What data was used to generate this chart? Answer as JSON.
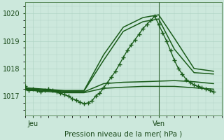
{
  "xlabel": "Pression niveau de la mer( hPa )",
  "ylim": [
    1016.3,
    1020.4
  ],
  "xlim": [
    0,
    50
  ],
  "yticks": [
    1017,
    1018,
    1019,
    1020
  ],
  "xtick_labels": [
    [
      "Jeu",
      2
    ],
    [
      "Ven",
      34
    ]
  ],
  "bg_color": "#cce8dc",
  "grid_color": "#b0d4c4",
  "line_color": "#1a5c1a",
  "vline_x": 34,
  "series_dotted": {
    "x": [
      0,
      1,
      2,
      3,
      4,
      5,
      6,
      7,
      8,
      9,
      10,
      11,
      12,
      13,
      14,
      15,
      16,
      17,
      18,
      19,
      20,
      21,
      22,
      23,
      24,
      25,
      26,
      27,
      28,
      29,
      30,
      31,
      32,
      33,
      34,
      35,
      36,
      37,
      38,
      39,
      40,
      41,
      42,
      43,
      44,
      45,
      46,
      47,
      48
    ],
    "y": [
      1017.35,
      1017.2,
      1017.25,
      1017.2,
      1017.15,
      1017.2,
      1017.25,
      1017.2,
      1017.15,
      1017.1,
      1017.05,
      1017.0,
      1016.9,
      1016.85,
      1016.78,
      1016.72,
      1016.75,
      1016.82,
      1017.0,
      1017.1,
      1017.3,
      1017.5,
      1017.7,
      1017.9,
      1018.15,
      1018.4,
      1018.65,
      1018.85,
      1019.05,
      1019.25,
      1019.45,
      1019.6,
      1019.75,
      1019.9,
      1019.6,
      1019.3,
      1019.0,
      1018.65,
      1018.3,
      1018.0,
      1017.8,
      1017.6,
      1017.5,
      1017.4,
      1017.35,
      1017.3,
      1017.25,
      1017.2,
      1017.15
    ],
    "marker": "+",
    "markersize": 4,
    "linewidth": 1.0,
    "color": "#1a5c1a"
  },
  "series_smooth": [
    {
      "x": [
        0,
        5,
        10,
        15,
        20,
        25,
        30,
        34,
        38,
        43,
        48
      ],
      "y": [
        1017.3,
        1017.25,
        1017.2,
        1017.2,
        1018.5,
        1019.5,
        1019.85,
        1019.95,
        1019.1,
        1018.0,
        1017.9
      ],
      "linewidth": 1.1,
      "color": "#1a5c1a"
    },
    {
      "x": [
        0,
        5,
        10,
        15,
        20,
        25,
        30,
        34,
        38,
        43,
        48
      ],
      "y": [
        1017.28,
        1017.22,
        1017.18,
        1017.18,
        1018.3,
        1019.35,
        1019.7,
        1019.8,
        1018.7,
        1017.85,
        1017.8
      ],
      "linewidth": 1.1,
      "color": "#1a5c1a"
    },
    {
      "x": [
        0,
        5,
        10,
        15,
        20,
        25,
        30,
        34,
        38,
        43,
        48
      ],
      "y": [
        1017.25,
        1017.2,
        1017.15,
        1017.15,
        1017.45,
        1017.5,
        1017.52,
        1017.54,
        1017.56,
        1017.52,
        1017.45
      ],
      "linewidth": 1.1,
      "color": "#1a5c1a"
    },
    {
      "x": [
        0,
        5,
        10,
        15,
        20,
        25,
        30,
        34,
        38,
        43,
        48
      ],
      "y": [
        1017.22,
        1017.17,
        1017.12,
        1017.12,
        1017.28,
        1017.32,
        1017.35,
        1017.35,
        1017.35,
        1017.3,
        1017.25
      ],
      "linewidth": 1.1,
      "color": "#1a5c1a"
    }
  ]
}
